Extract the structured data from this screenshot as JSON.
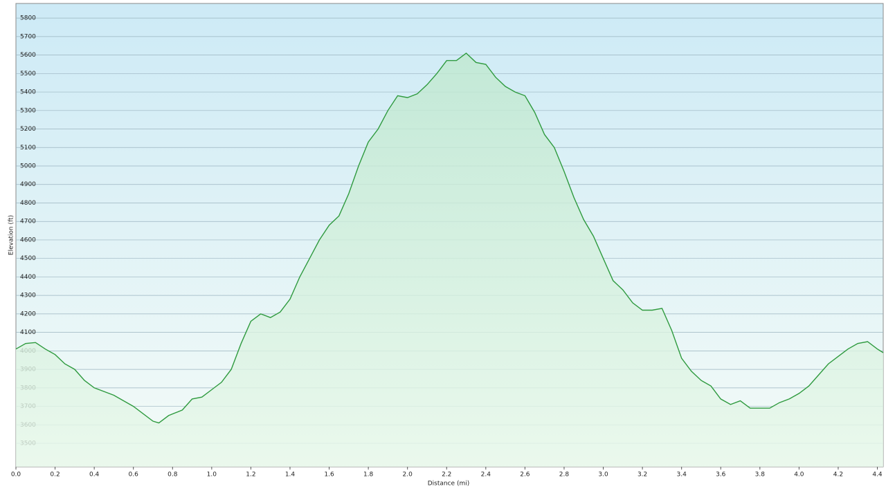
{
  "chart_data": {
    "type": "area",
    "xlabel": "Distance  (mi)",
    "ylabel": "Elevation (ft)",
    "x": [
      0,
      0.05,
      0.1,
      0.15,
      0.2,
      0.25,
      0.3,
      0.35,
      0.4,
      0.5,
      0.6,
      0.7,
      0.73,
      0.78,
      0.85,
      0.9,
      0.95,
      1.0,
      1.05,
      1.1,
      1.15,
      1.2,
      1.25,
      1.3,
      1.35,
      1.4,
      1.45,
      1.5,
      1.55,
      1.6,
      1.65,
      1.7,
      1.75,
      1.8,
      1.85,
      1.9,
      1.95,
      2.0,
      2.05,
      2.1,
      2.15,
      2.2,
      2.25,
      2.3,
      2.35,
      2.4,
      2.45,
      2.5,
      2.55,
      2.6,
      2.65,
      2.7,
      2.75,
      2.8,
      2.85,
      2.9,
      2.95,
      3.0,
      3.05,
      3.1,
      3.15,
      3.2,
      3.25,
      3.3,
      3.35,
      3.4,
      3.45,
      3.5,
      3.55,
      3.6,
      3.65,
      3.7,
      3.75,
      3.8,
      3.85,
      3.9,
      3.95,
      4.0,
      4.05,
      4.1,
      4.15,
      4.2,
      4.25,
      4.3,
      4.35,
      4.4,
      4.43
    ],
    "values": [
      4010,
      4040,
      4045,
      4010,
      3980,
      3930,
      3900,
      3840,
      3800,
      3760,
      3700,
      3620,
      3610,
      3650,
      3680,
      3740,
      3750,
      3790,
      3830,
      3900,
      4040,
      4160,
      4200,
      4180,
      4210,
      4280,
      4400,
      4500,
      4600,
      4680,
      4730,
      4850,
      5000,
      5130,
      5200,
      5300,
      5380,
      5370,
      5390,
      5440,
      5500,
      5570,
      5570,
      5610,
      5560,
      5550,
      5480,
      5430,
      5400,
      5380,
      5290,
      5170,
      5100,
      4970,
      4830,
      4710,
      4620,
      4500,
      4380,
      4330,
      4260,
      4220,
      4220,
      4230,
      4110,
      3960,
      3890,
      3840,
      3810,
      3740,
      3710,
      3730,
      3690,
      3690,
      3690,
      3720,
      3740,
      3770,
      3810,
      3870,
      3930,
      3970,
      4010,
      4040,
      4050,
      4010,
      3990
    ],
    "color": "#2e9a3e",
    "xlim": [
      0,
      4.43
    ],
    "ylim": [
      3373,
      5879
    ],
    "xticks": [
      {
        "value": 0,
        "label": "0.0"
      },
      0.2,
      0.4,
      0.6,
      0.8,
      {
        "value": 1,
        "label": "1.0"
      },
      1.2,
      1.4,
      1.6,
      1.8,
      {
        "value": 2,
        "label": "2.0"
      },
      2.2,
      2.4,
      2.6,
      2.8,
      {
        "value": 3,
        "label": "3.0"
      },
      3.2,
      3.4,
      3.6,
      3.8,
      {
        "value": 4,
        "label": "4.0"
      },
      4.2,
      4.4
    ],
    "yticks": [
      3500,
      3600,
      3700,
      3800,
      3900,
      4000,
      4100,
      4200,
      4300,
      4400,
      4500,
      4600,
      4700,
      4800,
      4900,
      5000,
      5100,
      5200,
      5300,
      5400,
      5500,
      5600,
      5700,
      5800
    ],
    "grid": true
  }
}
